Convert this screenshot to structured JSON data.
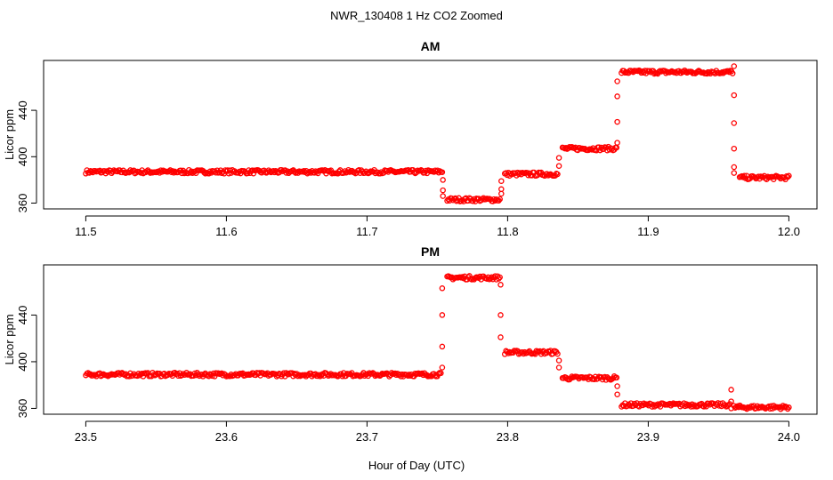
{
  "figure": {
    "title": "NWR_130408  1 Hz CO2 Zoomed",
    "xlabel": "Hour of Day (UTC)"
  },
  "chart_data": [
    {
      "type": "scatter",
      "title": "AM",
      "ylabel": "Licor ppm",
      "xlim": [
        11.47,
        12.02
      ],
      "ylim": [
        355,
        483
      ],
      "xticks": [
        11.5,
        11.6,
        11.7,
        11.8,
        11.9,
        12.0
      ],
      "xtick_labels": [
        "11.5",
        "11.6",
        "11.7",
        "11.8",
        "11.9",
        "12.0"
      ],
      "yticks": [
        360,
        400,
        440
      ],
      "ytick_labels": [
        "360",
        "400",
        "440"
      ],
      "grid": false,
      "marker": "open-circle",
      "color": "#ff0000",
      "series": [
        {
          "segments": [
            {
              "x_start": 11.5,
              "x_end": 11.7535,
              "y": 387
            },
            {
              "x_start": 11.757,
              "x_end": 11.7945,
              "y": 363
            },
            {
              "x_start": 11.798,
              "x_end": 11.8355,
              "y": 385
            },
            {
              "x_start": 11.839,
              "x_end": 11.8775,
              "y": 407
            },
            {
              "x_start": 11.881,
              "x_end": 11.96,
              "y": 473
            },
            {
              "x_start": 11.965,
              "x_end": 12.0,
              "y": 382
            }
          ],
          "transitions": [
            {
              "x": 11.754,
              "y": [
                380,
                371,
                366
              ]
            },
            {
              "x": 11.7955,
              "y": [
                368,
                372,
                379
              ]
            },
            {
              "x": 11.8365,
              "y": [
                392,
                399
              ]
            },
            {
              "x": 11.878,
              "y": [
                412,
                430,
                452,
                465
              ]
            },
            {
              "x": 11.961,
              "y": [
                478,
                453,
                429,
                407,
                391,
                386
              ]
            }
          ]
        }
      ]
    },
    {
      "type": "scatter",
      "title": "PM",
      "ylabel": "Licor ppm",
      "xlim": [
        23.47,
        24.02
      ],
      "ylim": [
        355,
        483
      ],
      "xticks": [
        23.5,
        23.6,
        23.7,
        23.8,
        23.9,
        24.0
      ],
      "xtick_labels": [
        "23.5",
        "23.6",
        "23.7",
        "23.8",
        "23.9",
        "24.0"
      ],
      "yticks": [
        360,
        400,
        440
      ],
      "ytick_labels": [
        "360",
        "400",
        "440"
      ],
      "grid": false,
      "marker": "open-circle",
      "color": "#ff0000",
      "series": [
        {
          "segments": [
            {
              "x_start": 23.5,
              "x_end": 23.7525,
              "y": 389
            },
            {
              "x_start": 23.757,
              "x_end": 23.7945,
              "y": 472
            },
            {
              "x_start": 23.798,
              "x_end": 23.8355,
              "y": 408
            },
            {
              "x_start": 23.839,
              "x_end": 23.8775,
              "y": 386
            },
            {
              "x_start": 23.881,
              "x_end": 23.958,
              "y": 363
            },
            {
              "x_start": 23.961,
              "x_end": 24.0,
              "y": 361
            }
          ],
          "transitions": [
            {
              "x": 23.7535,
              "y": [
                395,
                413,
                440,
                463
              ]
            },
            {
              "x": 23.795,
              "y": [
                466,
                440,
                421
              ]
            },
            {
              "x": 23.8365,
              "y": [
                401,
                395
              ]
            },
            {
              "x": 23.878,
              "y": [
                379,
                372
              ]
            },
            {
              "x": 23.959,
              "y": [
                376,
                366,
                360
              ]
            }
          ]
        }
      ]
    }
  ]
}
